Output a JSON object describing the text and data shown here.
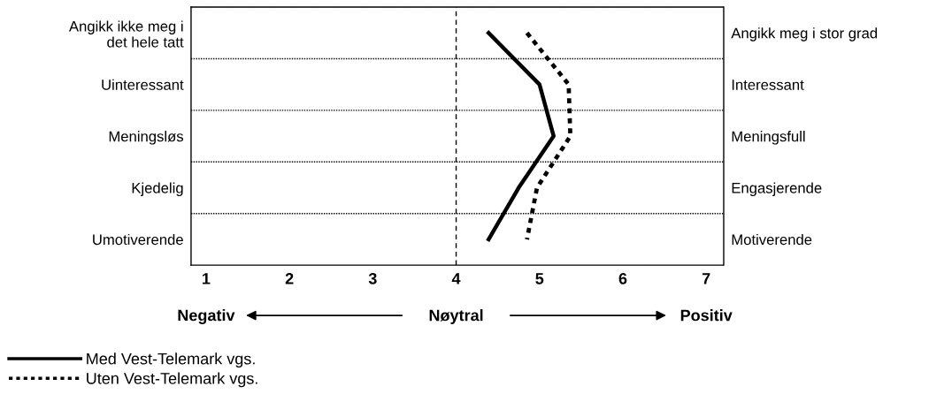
{
  "chart_data": {
    "type": "line",
    "orientation": "horizontal",
    "y_categories": [
      "Angikk ikke meg i\ndet hele tatt",
      "Uinteressant",
      "Meningsløs",
      "Kjedelig",
      "Umotiverende"
    ],
    "y2_categories": [
      "Angikk meg i stor grad",
      "Interessant",
      "Meningsfull",
      "Engasjerende",
      "Motiverende"
    ],
    "series": [
      {
        "name": "Med Vest-Telemark vgs.",
        "color": "#000000",
        "line_style": "solid",
        "values": [
          4.39,
          5.0,
          5.17,
          4.75,
          4.39
        ]
      },
      {
        "name": "Uten Vest-Telemark vgs.",
        "color": "#000000",
        "line_style": "dotted",
        "values": [
          4.85,
          5.35,
          5.37,
          4.97,
          4.85
        ]
      }
    ],
    "xlim": [
      0.82,
      7.21
    ],
    "xticks": [
      1,
      2,
      3,
      4,
      5,
      6,
      7
    ],
    "ref_lines": [
      {
        "axis": "x",
        "value": 4,
        "line_style": "dashed",
        "color": "#000000"
      }
    ],
    "annotations": [
      "Negativ",
      "Nøytral",
      "Positiv"
    ],
    "grid": "y",
    "legend": "bottom left",
    "marker": "none"
  }
}
